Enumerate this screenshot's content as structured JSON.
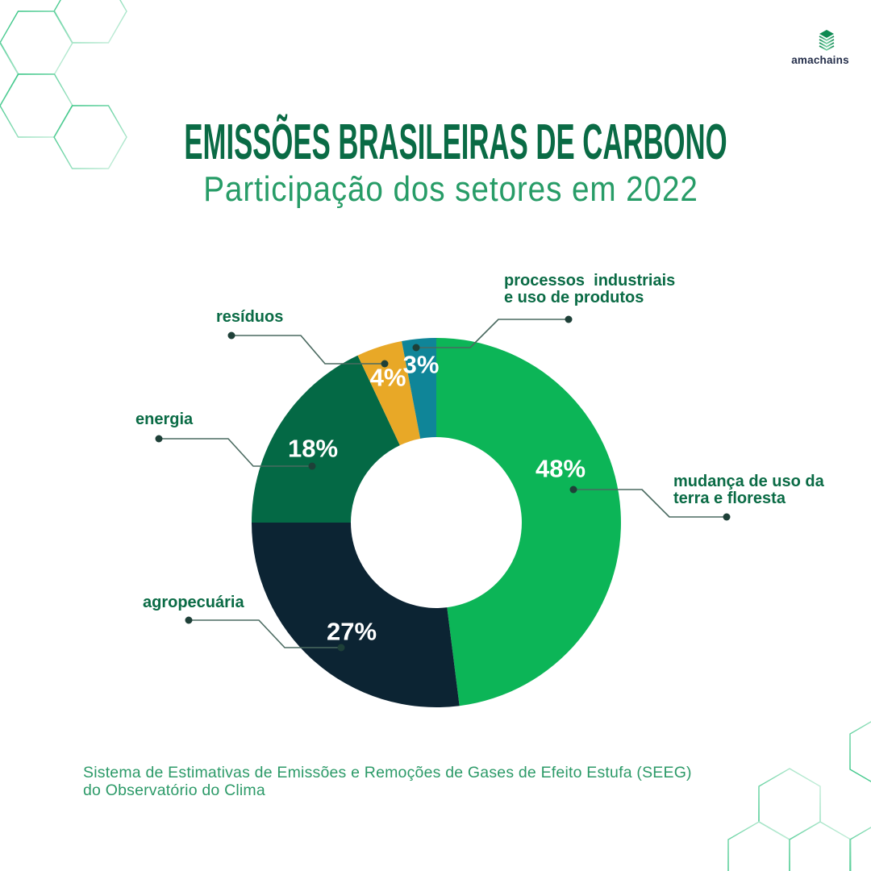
{
  "header": {
    "title": "EMISSÕES BRASILEIRAS DE CARBONO",
    "subtitle": "Participação dos setores em 2022"
  },
  "logo": {
    "name": "amachains",
    "icon": "layered-cube-icon"
  },
  "chart_data": {
    "type": "pie",
    "donut": true,
    "title": "Emissões brasileiras de carbono — participação dos setores em 2022",
    "start_angle_deg": 0,
    "direction": "clockwise",
    "units": "percent",
    "segments": [
      {
        "label": "mudança de uso da\nterra e floresta",
        "value_pct": 48,
        "pct_label": "48%",
        "color": "#0CB557"
      },
      {
        "label": "agropecuária",
        "value_pct": 27,
        "pct_label": "27%",
        "color": "#0C2433"
      },
      {
        "label": "energia",
        "value_pct": 18,
        "pct_label": "18%",
        "color": "#046945"
      },
      {
        "label": "resíduos",
        "value_pct": 4,
        "pct_label": "4%",
        "color": "#E8A827"
      },
      {
        "label": "processos  industriais\ne uso de produtos",
        "value_pct": 3,
        "pct_label": "3%",
        "color": "#0F8598"
      }
    ]
  },
  "source": {
    "line1": "Sistema de Estimativas de Emissões e Remoções de Gases de Efeito Estufa (SEEG)",
    "line2": "do Observatório do Clima"
  },
  "colors": {
    "title_green": "#0A6B45",
    "subtitle_green": "#279C67",
    "label_green": "#0A6B45",
    "footer_green": "#2C9A68",
    "leader_line": "#4A6A60",
    "leader_dot": "#1E4038",
    "pct_text": "#FFFFFF",
    "logo_text": "#252F4B",
    "logo_icon_dark": "#0E8A52",
    "logo_icon_light": "#7ED4A9",
    "hex_stroke_dark": "#25C07A",
    "hex_stroke_light": "#D6F2E4",
    "donut_hole": "#FFFFFF"
  }
}
